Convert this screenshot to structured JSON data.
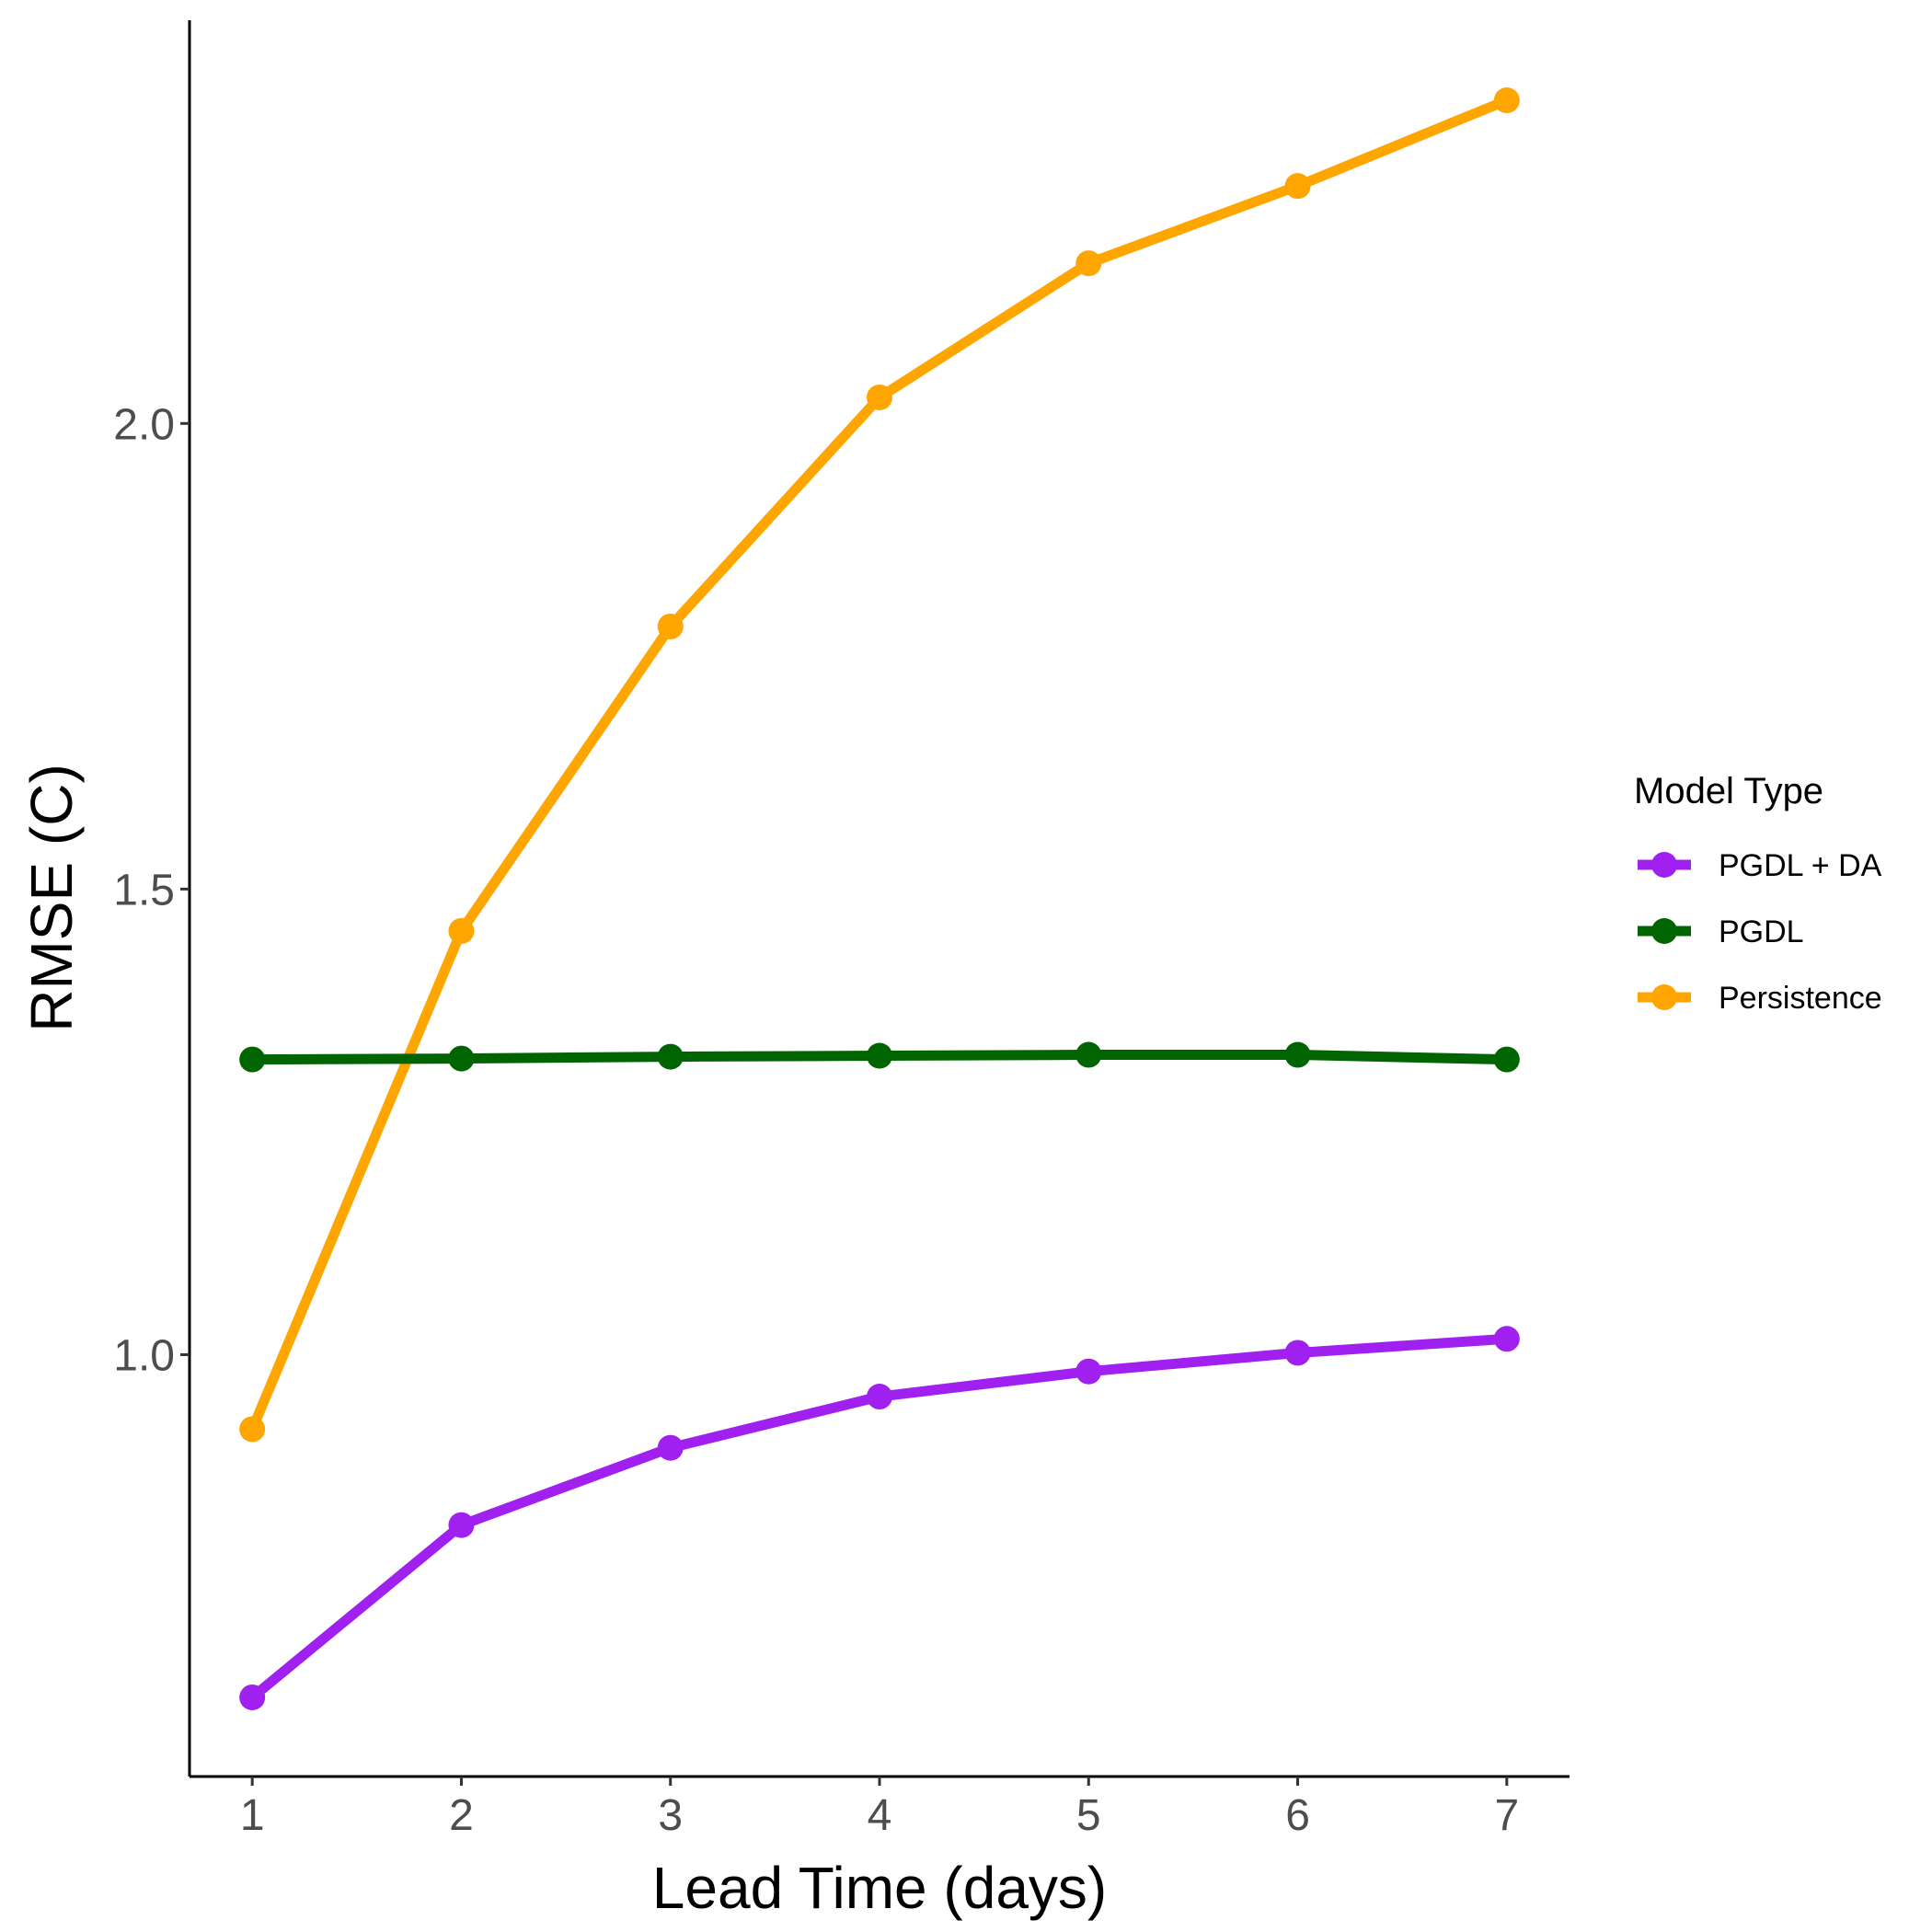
{
  "chart_data": {
    "type": "line",
    "title": "",
    "xlabel": "Lead Time (days)",
    "ylabel": "RMSE (C)",
    "x": [
      1,
      2,
      3,
      4,
      5,
      6,
      7
    ],
    "x_tick_labels": [
      "1",
      "2",
      "3",
      "4",
      "5",
      "6",
      "7"
    ],
    "y_ticks": [
      1.0,
      1.5,
      2.0
    ],
    "y_tick_labels": [
      "1.0",
      "1.5",
      "2.0"
    ],
    "xlim": [
      0.7,
      7.3
    ],
    "ylim": [
      0.547,
      2.433
    ],
    "grid": false,
    "legend_title": "Model Type",
    "legend_position": "right",
    "series": [
      {
        "name": "PGDL + DA",
        "color": "#a020f0",
        "values": [
          0.632,
          0.817,
          0.9,
          0.955,
          0.982,
          1.002,
          1.017
        ]
      },
      {
        "name": "PGDL",
        "color": "#006400",
        "values": [
          1.317,
          1.318,
          1.32,
          1.321,
          1.322,
          1.322,
          1.317
        ]
      },
      {
        "name": "Persistence",
        "color": "#ffa500",
        "values": [
          0.92,
          1.455,
          1.782,
          2.028,
          2.172,
          2.255,
          2.347
        ]
      }
    ]
  }
}
